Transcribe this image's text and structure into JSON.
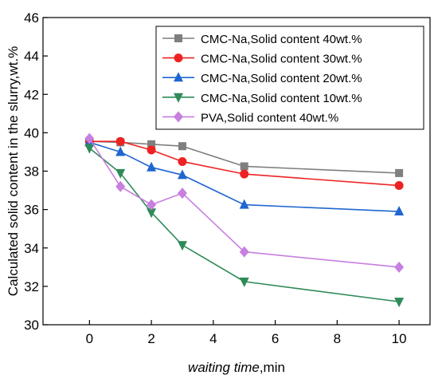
{
  "chart_data": {
    "type": "line",
    "xlabel_italic": "waiting time",
    "xlabel_unit": ",min",
    "ylabel": "Calculated solid content in the slurry,wt.%",
    "xlim": [
      -1.5,
      11
    ],
    "ylim": [
      30,
      46
    ],
    "xticks": [
      0,
      2,
      4,
      6,
      8,
      10
    ],
    "yticks": [
      30,
      32,
      34,
      36,
      38,
      40,
      42,
      44,
      46
    ],
    "x": [
      0,
      1,
      2,
      3,
      5,
      10
    ],
    "legend_position": "top-right",
    "grid": false,
    "series": [
      {
        "name": "CMC-Na,Solid content 40wt.%",
        "color": "#7f7f7f",
        "marker": "square",
        "values": [
          39.55,
          39.5,
          39.4,
          39.3,
          38.25,
          37.9
        ]
      },
      {
        "name": "CMC-Na,Solid content 30wt.%",
        "color": "#ee2222",
        "marker": "circle",
        "values": [
          39.55,
          39.55,
          39.1,
          38.5,
          37.85,
          37.25
        ]
      },
      {
        "name": "CMC-Na,Solid content 20wt.%",
        "color": "#1f66d0",
        "marker": "triangle-up",
        "values": [
          39.5,
          39.0,
          38.2,
          37.8,
          36.25,
          35.9
        ]
      },
      {
        "name": "CMC-Na,Solid content 10wt.%",
        "color": "#2e8b57",
        "marker": "triangle-down",
        "values": [
          39.2,
          37.9,
          35.85,
          34.15,
          32.25,
          31.2
        ]
      },
      {
        "name": "PVA,Solid content 40wt.%",
        "color": "#c77fe0",
        "marker": "diamond",
        "values": [
          39.7,
          37.2,
          36.25,
          36.85,
          33.8,
          33.0
        ]
      }
    ]
  }
}
